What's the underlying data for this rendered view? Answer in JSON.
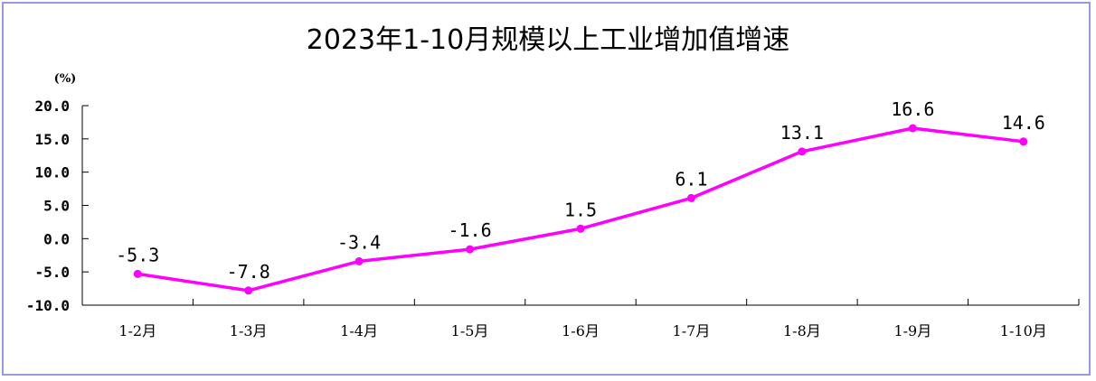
{
  "chart_data": {
    "type": "line",
    "title": "2023年1-10月规模以上工业增加值增速",
    "unit_label": "(%)",
    "categories": [
      "1-2月",
      "1-3月",
      "1-4月",
      "1-5月",
      "1-6月",
      "1-7月",
      "1-8月",
      "1-9月",
      "1-10月"
    ],
    "values": [
      -5.3,
      -7.8,
      -3.4,
      -1.6,
      1.5,
      6.1,
      13.1,
      16.6,
      14.6
    ],
    "data_labels": [
      "-5.3",
      "-7.8",
      "-3.4",
      "-1.6",
      "1.5",
      "6.1",
      "13.1",
      "16.6",
      "14.6"
    ],
    "ylim": [
      -10,
      20
    ],
    "yticks": [
      20,
      15,
      10,
      5,
      0,
      -5,
      -10
    ],
    "ytick_labels": [
      "20.0",
      "15.0",
      "10.0",
      "5.0",
      "0.0",
      "-5.0",
      "-10.0"
    ],
    "grid": false,
    "legend": "none",
    "line_color": "#ff00ff",
    "frame_color": "#9999e0"
  }
}
